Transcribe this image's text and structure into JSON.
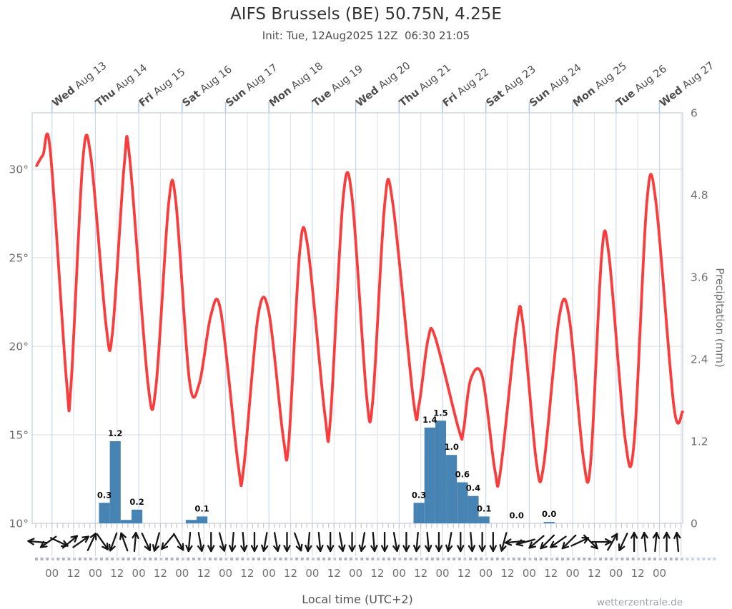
{
  "header": {
    "title": "AIFS Brussels (BE) 50.75N, 4.25E",
    "subtitle": "Init: Tue, 12Aug2025 12Z  06:30 21:05"
  },
  "axes": {
    "xlabel": "Local time (UTC+2)",
    "precip_axis_label": "Precipitation (mm)",
    "temp_ticks": [
      {
        "v": 30,
        "label": "30°"
      },
      {
        "v": 25,
        "label": "25°"
      },
      {
        "v": 20,
        "label": "20°"
      },
      {
        "v": 15,
        "label": "15°"
      },
      {
        "v": 10,
        "label": "10°"
      }
    ],
    "precip_ticks": [
      {
        "v": 6,
        "label": "6"
      },
      {
        "v": 4.8,
        "label": "4.8"
      },
      {
        "v": 3.6,
        "label": "3.6"
      },
      {
        "v": 2.4,
        "label": "2.4"
      },
      {
        "v": 1.2,
        "label": "1.2"
      },
      {
        "v": 0,
        "label": "0"
      }
    ],
    "day_labels": [
      {
        "weekday": "Wed",
        "date": " Aug 13"
      },
      {
        "weekday": "Thu",
        "date": " Aug 14"
      },
      {
        "weekday": "Fri",
        "date": " Aug 15"
      },
      {
        "weekday": "Sat",
        "date": " Aug 16"
      },
      {
        "weekday": "Sun",
        "date": " Aug 17"
      },
      {
        "weekday": "Mon",
        "date": " Aug 18"
      },
      {
        "weekday": "Tue",
        "date": " Aug 19"
      },
      {
        "weekday": "Wed",
        "date": " Aug 20"
      },
      {
        "weekday": "Thu",
        "date": " Aug 21"
      },
      {
        "weekday": "Fri",
        "date": " Aug 22"
      },
      {
        "weekday": "Sat",
        "date": " Aug 23"
      },
      {
        "weekday": "Sun",
        "date": " Aug 24"
      },
      {
        "weekday": "Mon",
        "date": " Aug 25"
      },
      {
        "weekday": "Tue",
        "date": " Aug 26"
      },
      {
        "weekday": "Wed",
        "date": " Aug 27"
      }
    ],
    "time_tick_labels": [
      "00",
      "12",
      "00",
      "12",
      "00",
      "12",
      "00",
      "12",
      "00",
      "12",
      "00",
      "12",
      "00",
      "12",
      "00",
      "12",
      "00",
      "12",
      "00",
      "12",
      "00",
      "12",
      "00",
      "12",
      "00",
      "12",
      "00",
      "12",
      "00"
    ]
  },
  "footer": {
    "watermark": "wetterzentrale.de"
  },
  "colors": {
    "temperature": "#f93c3c",
    "precipitation": "#4783b3",
    "grid_day": "#ccd8ee",
    "grid_12h": "#e4e4ea",
    "grid_horizontal": "#e2e2e8",
    "border": "#c9d0da",
    "day_tick": "#b5c8e8",
    "wind_arrow": "#151515",
    "dot_row": "#aab2bd",
    "dot_row_light": "#c3d3ee",
    "tick_text": "#707070",
    "day_text": "#4d4d4d",
    "bar_label": "#0d0d0d"
  },
  "chart_data": {
    "type": "line+bar",
    "title": "AIFS Brussels (BE) 50.75N, 4.25E",
    "x_unit": "hours since Wed Aug 13 00:00 local (UTC+2)",
    "x_range_hours": [
      -11,
      349
    ],
    "temp_axis": {
      "ticks": [
        10,
        15,
        20,
        25,
        30
      ],
      "range_at_plot_edges": [
        10,
        33.2
      ]
    },
    "precip_axis": {
      "ticks": [
        0,
        1.2,
        2.4,
        3.6,
        4.8,
        6
      ],
      "range": [
        0,
        6
      ]
    },
    "temperature_c": [
      [
        -8.5,
        30.2
      ],
      [
        -5,
        30.8
      ],
      [
        -1,
        31.1
      ],
      [
        8,
        18.1
      ],
      [
        10.5,
        17.8
      ],
      [
        17,
        30.4
      ],
      [
        21.5,
        30.7
      ],
      [
        30,
        21.1
      ],
      [
        33.5,
        20.8
      ],
      [
        40,
        30.3
      ],
      [
        43,
        30.6
      ],
      [
        53,
        18.0
      ],
      [
        57.5,
        17.7
      ],
      [
        64.5,
        28.0
      ],
      [
        68.5,
        28.2
      ],
      [
        76,
        18.1
      ],
      [
        81.5,
        17.9
      ],
      [
        88,
        21.8
      ],
      [
        93.5,
        21.9
      ],
      [
        103,
        13.3
      ],
      [
        106,
        13.1
      ],
      [
        114,
        21.7
      ],
      [
        120,
        21.9
      ],
      [
        128,
        14.8
      ],
      [
        131,
        14.6
      ],
      [
        137,
        25.3
      ],
      [
        141.5,
        25.6
      ],
      [
        151,
        16.1
      ],
      [
        154,
        15.9
      ],
      [
        161,
        28.3
      ],
      [
        166,
        28.4
      ],
      [
        174,
        17.2
      ],
      [
        177.5,
        17.0
      ],
      [
        184,
        28.0
      ],
      [
        188.5,
        28.1
      ],
      [
        200,
        16.9
      ],
      [
        203,
        16.7
      ],
      [
        208,
        20.4
      ],
      [
        212,
        20.5
      ],
      [
        225,
        15.3
      ],
      [
        227.5,
        15.2
      ],
      [
        231.5,
        18.1
      ],
      [
        238,
        18.3
      ],
      [
        245,
        13.0
      ],
      [
        248,
        12.9
      ],
      [
        257,
        21.2
      ],
      [
        260.5,
        21.3
      ],
      [
        268,
        13.4
      ],
      [
        272,
        13.3
      ],
      [
        280.5,
        21.6
      ],
      [
        286,
        21.7
      ],
      [
        294,
        13.6
      ],
      [
        298,
        13.5
      ],
      [
        304,
        25.1
      ],
      [
        308,
        25.2
      ],
      [
        317,
        14.8
      ],
      [
        322,
        14.6
      ],
      [
        329,
        28.1
      ],
      [
        334,
        28.2
      ],
      [
        344,
        16.6
      ],
      [
        348.8,
        16.3
      ]
    ],
    "precip_6h_mm": [
      {
        "t": 26,
        "mm": 0.3,
        "label": "0.3"
      },
      {
        "t": 32,
        "mm": 1.2,
        "label": "1.2"
      },
      {
        "t": 38,
        "mm": 0.05,
        "label": ""
      },
      {
        "t": 44,
        "mm": 0.2,
        "label": "0.2"
      },
      {
        "t": 74,
        "mm": 0.05,
        "label": ""
      },
      {
        "t": 80,
        "mm": 0.1,
        "label": "0.1"
      },
      {
        "t": 200,
        "mm": 0.3,
        "label": "0.3"
      },
      {
        "t": 206,
        "mm": 1.4,
        "label": "1.4"
      },
      {
        "t": 212,
        "mm": 1.5,
        "label": "1.5"
      },
      {
        "t": 218,
        "mm": 1.0,
        "label": "1.0"
      },
      {
        "t": 224,
        "mm": 0.6,
        "label": "0.6"
      },
      {
        "t": 230,
        "mm": 0.4,
        "label": "0.4"
      },
      {
        "t": 236,
        "mm": 0.1,
        "label": "0.1"
      },
      {
        "t": 254,
        "mm": 0.0,
        "label": "0.0"
      },
      {
        "t": 272,
        "mm": 0.02,
        "label": "0.0"
      }
    ],
    "wind_direction_arrows": {
      "t_start": -8,
      "dt_hours": 6,
      "angles_deg_clockwise_from_north": [
        275,
        235,
        115,
        50,
        55,
        25,
        145,
        200,
        340,
        5,
        155,
        195,
        220,
        150,
        185,
        170,
        180,
        165,
        185,
        175,
        180,
        190,
        170,
        180,
        160,
        185,
        175,
        180,
        170,
        180,
        190,
        175,
        180,
        170,
        180,
        185,
        175,
        180,
        190,
        180,
        175,
        180,
        180,
        195,
        265,
        255,
        230,
        225,
        235,
        225,
        65,
        135,
        90,
        30,
        205,
        0,
        355,
        5,
        0,
        355
      ]
    }
  }
}
